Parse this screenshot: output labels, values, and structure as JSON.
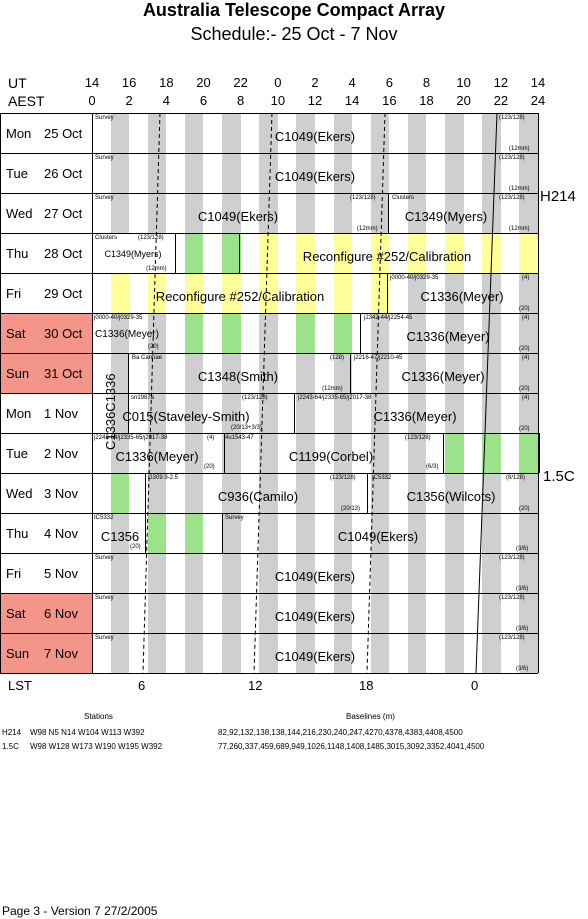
{
  "header": {
    "title": "Australia Telescope Compact Array",
    "subtitle": "Schedule:- 25 Oct - 7  Nov"
  },
  "axis": {
    "ut_label": "UT",
    "aest_label": "AEST",
    "ut_ticks": [
      "14",
      "16",
      "18",
      "20",
      "22",
      "0",
      "2",
      "4",
      "6",
      "8",
      "10",
      "12",
      "14"
    ],
    "aest_ticks": [
      "0",
      "2",
      "4",
      "6",
      "8",
      "10",
      "12",
      "14",
      "16",
      "18",
      "20",
      "22",
      "24"
    ],
    "lst_label": "LST",
    "lst_ticks": [
      "6",
      "12",
      "18",
      "0"
    ]
  },
  "rows": [
    {
      "day": "Mon",
      "date": "25 Oct",
      "weekend": false
    },
    {
      "day": "Tue",
      "date": "26 Oct",
      "weekend": false
    },
    {
      "day": "Wed",
      "date": "27 Oct",
      "weekend": false
    },
    {
      "day": "Thu",
      "date": "28 Oct",
      "weekend": false
    },
    {
      "day": "Fri",
      "date": "29 Oct",
      "weekend": false
    },
    {
      "day": "Sat",
      "date": "30 Oct",
      "weekend": true
    },
    {
      "day": "Sun",
      "date": "31 Oct",
      "weekend": true
    },
    {
      "day": "Mon",
      "date": "1  Nov",
      "weekend": false
    },
    {
      "day": "Tue",
      "date": "2  Nov",
      "weekend": false
    },
    {
      "day": "Wed",
      "date": "3  Nov",
      "weekend": false
    },
    {
      "day": "Thu",
      "date": "4  Nov",
      "weekend": false
    },
    {
      "day": "Fri",
      "date": "5  Nov",
      "weekend": false
    },
    {
      "day": "Sat",
      "date": "6  Nov",
      "weekend": true
    },
    {
      "day": "Sun",
      "date": "7  Nov",
      "weekend": true
    }
  ],
  "projects": {
    "r0_main": "C1049(Ekers)",
    "r1_main": "C1049(Ekers)",
    "r2_a": "C1049(Ekers)",
    "r2_b": "C1349(Myers)",
    "r3_a": "C1349(Myers)",
    "r3_b": "Reconfigure #252/Calibration",
    "r4_a": "Reconfigure #252/Calibration",
    "r4_b": "C1336(Meyer)",
    "r5_a": "C1336(Meyer)",
    "r5_b": "C1336(Meyer)",
    "r6_a": "C1348(Smith)",
    "r6_b": "C1336(Meyer)",
    "r7_a": "C015(Staveley-Smith)",
    "r7_b": "C1336(Meyer)",
    "r8_a": "C1336(Meyer)",
    "r8_b": "C1199(Corbel)",
    "r9_a": "C936(Camilo)",
    "r9_b": "C1356(Wilcots)",
    "r10_a": "C1356",
    "r10_b": "C1049(Ekers)",
    "r11_main": "C1049(Ekers)",
    "r12_main": "C1049(Ekers)",
    "r13_main": "C1049(Ekers)",
    "vertical": "C1336C1336"
  },
  "small_labels": {
    "survey": "Survey",
    "clusters": "Clusters",
    "n123": "(123/128)",
    "n12mm": "(12mm)",
    "n4": "(4)",
    "n20": "(20)",
    "n128": "(128)",
    "n36": "(3/6)",
    "n63": "(6/3)",
    "n8128": "(8/128)",
    "n2013": "(20/13)",
    "n2013403": "(20/13+3/3)",
    "src_a": "j0000-40/j0329-35",
    "src_b": "j2342-44/j2254-45",
    "src_c": "j2216-47/j2210-45",
    "src_d": "j2243-64/j2335-65/j2017-38",
    "src_e": "sn1987a",
    "src_f": "Ba Cannae",
    "src_g": "4u1543-47",
    "src_h": "G309.9-2.5",
    "src_i": "IC5332"
  },
  "configs": {
    "h214": "H214",
    "c15": "1.5C"
  },
  "footer": {
    "stations_header": "Stations",
    "baselines_header": "Baselines (m)",
    "h214_name": "H214",
    "h214_stations": "W98 N5 N14 W104 W113 W392",
    "h214_baselines": "82,92,132,138,138,144,216,230,240,247,4270,4378,4383,4408,4500",
    "c15_name": "1.5C",
    "c15_stations": "W98 W128 W173 W190 W195 W392",
    "c15_baselines": "77,260,337,459,689,949,1026,1148,1408,1485,3015,3092,3352,4041,4500",
    "page": "Page 3 - Version 7  27/2/2005"
  }
}
